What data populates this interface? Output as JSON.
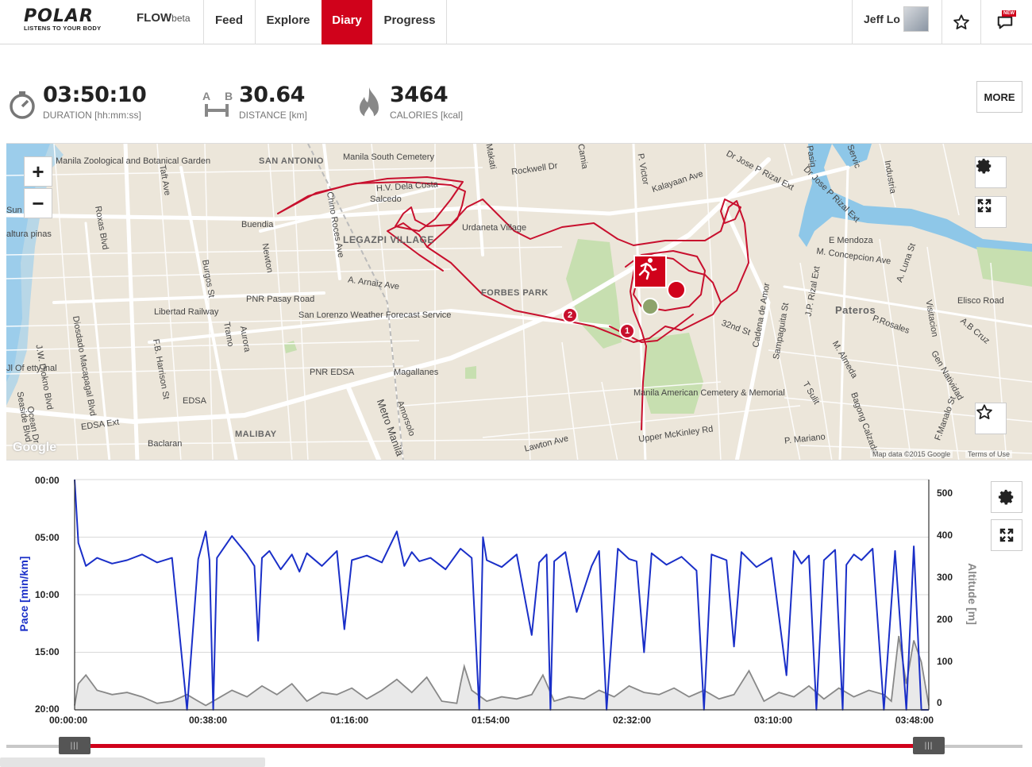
{
  "brand": {
    "logo_text": "POLAR",
    "tagline": "LISTENS TO YOUR BODY",
    "product": "FLOW",
    "product_suffix": "beta"
  },
  "nav": {
    "items": [
      {
        "label": "Feed",
        "active": false
      },
      {
        "label": "Explore",
        "active": false
      },
      {
        "label": "Diary",
        "active": true
      },
      {
        "label": "Progress",
        "active": false
      }
    ]
  },
  "user": {
    "name": "Jeff Lo",
    "favorites_icon": "star-icon",
    "notifications_icon": "speech-bubble-icon",
    "notifications_badge": "NEW"
  },
  "summary": {
    "duration": {
      "value": "03:50:10",
      "label": "DURATION [hh:mm:ss]",
      "icon": "stopwatch-icon"
    },
    "distance": {
      "value": "30.64",
      "label": "DISTANCE [km]",
      "icon": "distance-a-b-icon",
      "a": "A",
      "b": "B"
    },
    "calories": {
      "value": "3464",
      "label": "CALORIES [kcal]",
      "icon": "flame-icon"
    },
    "more_label": "MORE"
  },
  "map": {
    "zoom_in": "+",
    "zoom_out": "−",
    "labels": [
      "Manila Zoological and Botanical Garden",
      "Manila South Cemetery",
      "SAN ANTONIO",
      "H.V. Dela Costa",
      "Salcedo",
      "Rockwell Dr",
      "Kalayaan Ave",
      "Dr Jose P Rizal Ext",
      "Buendia",
      "LEGAZPI VILLAGE",
      "Urdaneta Village",
      "Newton",
      "A. Arnaiz Ave",
      "PNR Pasay Road",
      "Libertad Railway",
      "FORBES PARK",
      "San Lorenzo Weather Forecast Service",
      "E Mendoza",
      "M. Concepcion Ave",
      "Pateros",
      "Elisco Road",
      "PNR EDSA",
      "Magallanes",
      "EDSA",
      "EDSA Ext",
      "Baclaran",
      "MALIBAY",
      "Metro Manila",
      "Manila American Cemetery & Memorial",
      "Upper McKinley Rd",
      "Lawton Ave",
      "P. Mariano",
      "Roxas Blvd",
      "Taft Ave",
      "Chino Roces Ave",
      "Burgos St",
      "Diosdado Macapagal Blvd",
      "J.W. Diokno Blvd",
      "F.B. Harrison St",
      "Amorsolo",
      "Tramo",
      "Aurora",
      "Cadena de Amor",
      "Sampaguita St",
      "J.P. Rizal Ext",
      "P.Rosales",
      "A. Luna St",
      "Industria",
      "M. Almeda",
      "Bagong Calzada",
      "T Sulit",
      "Visitacion",
      "A.B Cruz",
      "Gen Natividad",
      "F.Manalo St",
      "P. Victor",
      "Camia",
      "Makati",
      "Sun",
      "altura pinas",
      "Ocean Dr",
      "Seaside Blvd",
      "Jl Of etty inal",
      "Dr Jose P Rizal Ext",
      "32nd St",
      "Pasig",
      "Servic"
    ],
    "markers": [
      "1",
      "2"
    ],
    "attribution": "Map data ©2015 Google",
    "terms": "Terms of Use",
    "google": "Google",
    "settings_icon": "gear-icon",
    "fullscreen_icon": "expand-icon",
    "favorite_icon": "star-icon",
    "sport_icon": "running-icon"
  },
  "chart_data": {
    "type": "line",
    "x_tick_labels": [
      "00:00:00",
      "00:38:00",
      "01:16:00",
      "01:54:00",
      "02:32:00",
      "03:10:00",
      "03:48:00"
    ],
    "pace_axis": {
      "label": "Pace [min/km]",
      "ticks": [
        "00:00",
        "05:00",
        "10:00",
        "15:00",
        "20:00"
      ],
      "color": "#1a2fc8",
      "range_min": [
        0,
        20
      ]
    },
    "altitude_axis": {
      "label": "Altitude [m]",
      "ticks": [
        "500",
        "400",
        "300",
        "200",
        "100",
        "0"
      ],
      "color": "#888888",
      "range_m": [
        0,
        500
      ]
    },
    "series": [
      {
        "name": "Pace [min/km]",
        "x_min": [
          0,
          1,
          3,
          6,
          10,
          14,
          18,
          22,
          26,
          30,
          33,
          35,
          36,
          37,
          38,
          42,
          46,
          48,
          49,
          50,
          52,
          55,
          58,
          60,
          62,
          66,
          70,
          72,
          74,
          78,
          82,
          86,
          88,
          90,
          92,
          95,
          99,
          103,
          106,
          108,
          109,
          110,
          114,
          118,
          122,
          124,
          126,
          127,
          128,
          131,
          134,
          138,
          140,
          142,
          145,
          148,
          150,
          152,
          154,
          158,
          162,
          166,
          168,
          170,
          174,
          176,
          178,
          182,
          186,
          190,
          192,
          194,
          196,
          198,
          200,
          203,
          205,
          206,
          208,
          210,
          213,
          216,
          219,
          222,
          224,
          226,
          228
        ],
        "pace_min_per_km": [
          0,
          5.5,
          7.5,
          6.8,
          7.3,
          7.0,
          6.5,
          7.2,
          6.8,
          20,
          6.9,
          4.5,
          7.0,
          20,
          6.8,
          4.9,
          6.5,
          7.5,
          14,
          6.8,
          6.2,
          7.8,
          6.5,
          8.0,
          6.4,
          7.5,
          6.2,
          13,
          7.0,
          6.6,
          7.2,
          4.5,
          7.5,
          6.3,
          7.1,
          6.8,
          7.8,
          6.0,
          6.8,
          20,
          5.0,
          7.0,
          7.6,
          6.5,
          13.5,
          7.2,
          6.5,
          20,
          7.1,
          6.3,
          11.5,
          7.5,
          6.2,
          20,
          6.0,
          6.9,
          7.1,
          15,
          6.4,
          7.4,
          6.7,
          7.9,
          20,
          6.5,
          7.0,
          14.5,
          6.3,
          7.6,
          6.8,
          17,
          6.2,
          7.3,
          6.6,
          20,
          7.0,
          6.1,
          20,
          7.4,
          6.5,
          7.0,
          6.0,
          20,
          6.2,
          20,
          5.8,
          20,
          20
        ],
        "color": "#1a2fc8"
      },
      {
        "name": "Altitude [m]",
        "x_min": [
          0,
          1,
          3,
          6,
          10,
          14,
          18,
          22,
          26,
          30,
          33,
          35,
          38,
          42,
          46,
          50,
          54,
          58,
          62,
          66,
          70,
          74,
          78,
          82,
          86,
          90,
          94,
          98,
          102,
          103,
          104,
          106,
          110,
          114,
          118,
          122,
          124,
          125,
          128,
          132,
          136,
          140,
          144,
          148,
          152,
          156,
          160,
          164,
          168,
          172,
          176,
          180,
          184,
          188,
          192,
          196,
          200,
          204,
          208,
          212,
          216,
          218,
          220,
          222,
          224,
          226,
          228
        ],
        "altitude_m": [
          10,
          60,
          80,
          45,
          35,
          40,
          30,
          15,
          20,
          35,
          20,
          10,
          25,
          45,
          30,
          55,
          35,
          60,
          20,
          40,
          35,
          50,
          25,
          45,
          70,
          40,
          75,
          20,
          15,
          60,
          100,
          45,
          20,
          30,
          25,
          35,
          65,
          80,
          20,
          30,
          25,
          45,
          30,
          55,
          40,
          35,
          50,
          30,
          45,
          25,
          35,
          90,
          20,
          40,
          30,
          55,
          25,
          50,
          30,
          45,
          35,
          20,
          170,
          60,
          160,
          110,
          10
        ],
        "color": "#888888"
      }
    ],
    "slider": {
      "start_icon": "grip-handle-icon",
      "end_icon": "grip-handle-icon"
    },
    "settings_icon": "gear-icon",
    "fullscreen_icon": "expand-icon"
  }
}
